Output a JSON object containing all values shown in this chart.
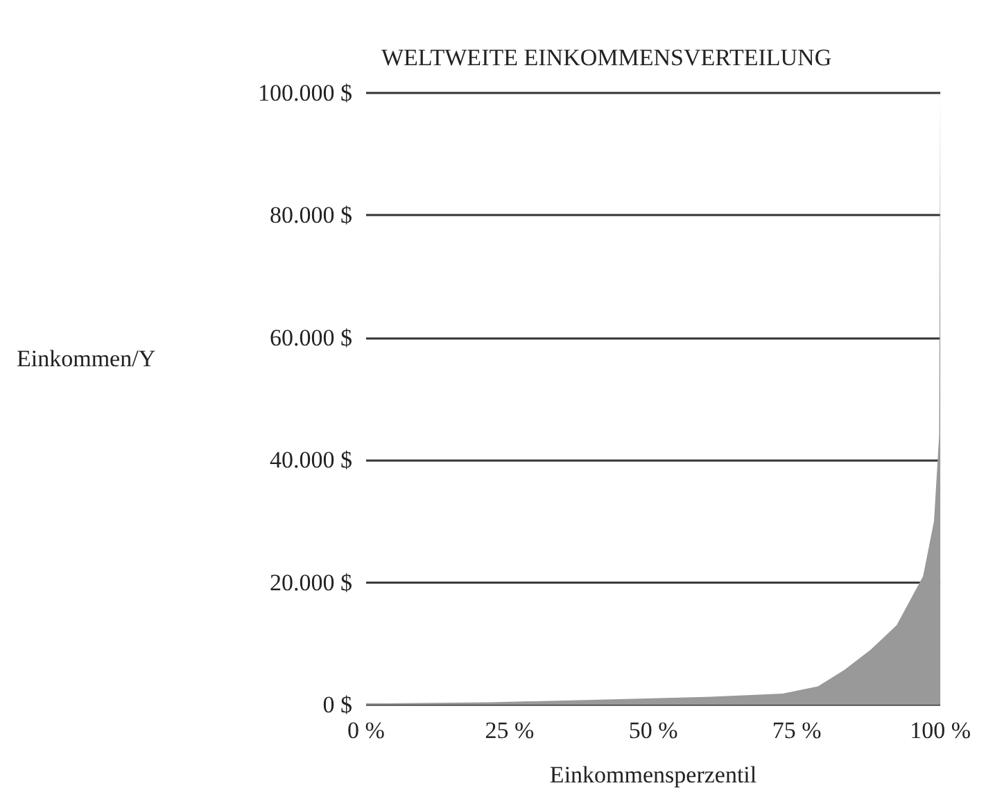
{
  "chart_data": {
    "type": "area",
    "title": "WELTWEITE EINKOMMENSVERTEILUNG",
    "xlabel": "Einkommensperzentil",
    "ylabel": "Einkommen/Y",
    "x": [
      0,
      21.5,
      44,
      60,
      72.5,
      78.7,
      83.3,
      87.9,
      92.4,
      97,
      98.9,
      99.8,
      100
    ],
    "series": [
      {
        "color": "#999999",
        "values": [
          200,
          400,
          900,
          1300,
          1800,
          3000,
          5700,
          9000,
          13000,
          21000,
          30000,
          44000,
          100000
        ]
      }
    ],
    "xlim": [
      0,
      100
    ],
    "xticks": [
      {
        "value": 0,
        "label": "0 %"
      },
      {
        "value": 25,
        "label": "25 %"
      },
      {
        "value": 50,
        "label": "50 %"
      },
      {
        "value": 75,
        "label": "75 %"
      },
      {
        "value": 100,
        "label": "100 %"
      }
    ],
    "ylim": [
      0,
      100000
    ],
    "yticks": [
      {
        "value": 0,
        "label": "0 $"
      },
      {
        "value": 20000,
        "label": "20.000 $"
      },
      {
        "value": 40000,
        "label": "40.000 $"
      },
      {
        "value": 60000,
        "label": "60.000 $"
      },
      {
        "value": 80000,
        "label": "80.000 $"
      },
      {
        "value": 100000,
        "label": "100.000 $"
      }
    ],
    "grid": "y",
    "marker": "none"
  }
}
